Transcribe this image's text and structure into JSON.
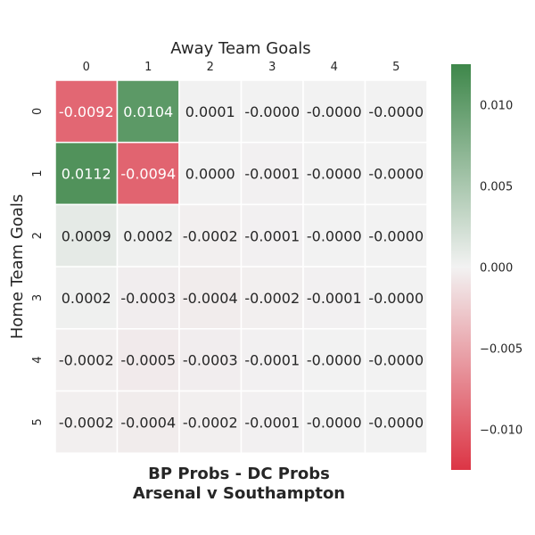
{
  "chart_data": {
    "type": "heatmap",
    "title": [
      "BP Probs - DC Probs",
      "Arsenal v Southampton"
    ],
    "xlabel": "Away Team Goals",
    "ylabel": "Home Team Goals",
    "x_categories": [
      "0",
      "1",
      "2",
      "3",
      "4",
      "5"
    ],
    "y_categories": [
      "0",
      "1",
      "2",
      "3",
      "4",
      "5"
    ],
    "values": [
      [
        -0.0092,
        0.0104,
        0.0001,
        -0.0,
        -0.0,
        -0.0
      ],
      [
        0.0112,
        -0.0094,
        0.0,
        -0.0001,
        -0.0,
        -0.0
      ],
      [
        0.0009,
        0.0002,
        -0.0002,
        -0.0001,
        -0.0,
        -0.0
      ],
      [
        0.0002,
        -0.0003,
        -0.0004,
        -0.0002,
        -0.0001,
        -0.0
      ],
      [
        -0.0002,
        -0.0005,
        -0.0003,
        -0.0001,
        -0.0,
        -0.0
      ],
      [
        -0.0002,
        -0.0004,
        -0.0002,
        -0.0001,
        -0.0,
        -0.0
      ]
    ],
    "value_labels": [
      [
        "-0.0092",
        "0.0104",
        "0.0001",
        "-0.0000",
        "-0.0000",
        "-0.0000"
      ],
      [
        "0.0112",
        "-0.0094",
        "0.0000",
        "-0.0001",
        "-0.0000",
        "-0.0000"
      ],
      [
        "0.0009",
        "0.0002",
        "-0.0002",
        "-0.0001",
        "-0.0000",
        "-0.0000"
      ],
      [
        "0.0002",
        "-0.0003",
        "-0.0004",
        "-0.0002",
        "-0.0001",
        "-0.0000"
      ],
      [
        "-0.0002",
        "-0.0005",
        "-0.0003",
        "-0.0001",
        "-0.0000",
        "-0.0000"
      ],
      [
        "-0.0002",
        "-0.0004",
        "-0.0002",
        "-0.0001",
        "-0.0000",
        "-0.0000"
      ]
    ],
    "colorbar": {
      "vmin": -0.0125,
      "vmax": 0.0125,
      "ticks": [
        0.01,
        0.005,
        0.0,
        -0.005,
        -0.01
      ],
      "tick_labels": [
        "0.010",
        "0.005",
        "0.000",
        "−0.005",
        "−0.010"
      ]
    },
    "colors": {
      "negative": "#dc3545",
      "neutral": "#f2f2f2",
      "positive": "#3e874a"
    },
    "grid": true,
    "x_tick_position": "top"
  }
}
